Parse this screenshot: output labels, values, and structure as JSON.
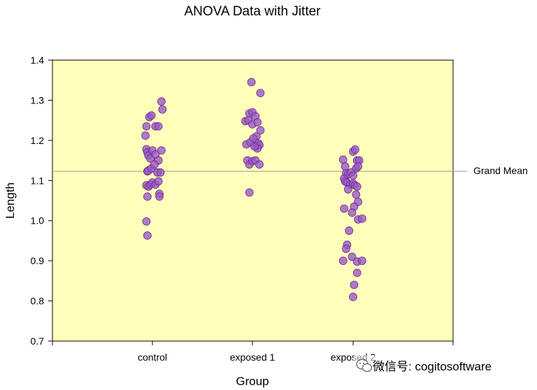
{
  "chart_data": {
    "type": "scatter",
    "title": "ANOVA Data with Jitter",
    "xlabel": "Group",
    "ylabel": "Length",
    "categories": [
      "control",
      "exposed 1",
      "exposed 2"
    ],
    "ylim": [
      0.7,
      1.4
    ],
    "yticks": [
      "0.7",
      "0.8",
      "0.9",
      "1.0",
      "1.1",
      "1.2",
      "1.3",
      "1.4"
    ],
    "grid": false,
    "plot_background": "#FFFFBB",
    "marker_color": "#9B59C6",
    "marker_edge": "#6A2C91",
    "reference_line": {
      "label": "Grand Mean",
      "value": 1.123,
      "color": "#999999"
    },
    "series": [
      {
        "category": "control",
        "points": [
          [
            -0.07,
            1.212
          ],
          [
            -0.06,
            1.235
          ],
          [
            -0.03,
            1.258
          ],
          [
            -0.01,
            1.262
          ],
          [
            0.03,
            1.235
          ],
          [
            0.06,
            1.235
          ],
          [
            0.09,
            1.297
          ],
          [
            0.1,
            1.277
          ],
          [
            -0.06,
            1.178
          ],
          [
            -0.05,
            1.17
          ],
          [
            -0.04,
            1.162
          ],
          [
            -0.02,
            1.155
          ],
          [
            0.0,
            1.175
          ],
          [
            0.03,
            1.165
          ],
          [
            0.06,
            1.15
          ],
          [
            0.09,
            1.175
          ],
          [
            -0.05,
            1.123
          ],
          [
            -0.04,
            1.125
          ],
          [
            -0.01,
            1.13
          ],
          [
            0.02,
            1.14
          ],
          [
            0.05,
            1.12
          ],
          [
            0.08,
            1.12
          ],
          [
            -0.06,
            1.088
          ],
          [
            -0.04,
            1.085
          ],
          [
            -0.02,
            1.09
          ],
          [
            0.0,
            1.095
          ],
          [
            0.03,
            1.09
          ],
          [
            0.06,
            1.098
          ],
          [
            0.07,
            1.067
          ],
          [
            0.07,
            1.06
          ],
          [
            -0.05,
            1.06
          ],
          [
            -0.06,
            0.998
          ],
          [
            -0.05,
            0.963
          ]
        ]
      },
      {
        "category": "exposed 1",
        "points": [
          [
            -0.01,
            1.345
          ],
          [
            0.08,
            1.318
          ],
          [
            -0.03,
            1.267
          ],
          [
            0.0,
            1.27
          ],
          [
            0.03,
            1.26
          ],
          [
            -0.07,
            1.248
          ],
          [
            -0.04,
            1.25
          ],
          [
            0.0,
            1.24
          ],
          [
            0.05,
            1.245
          ],
          [
            0.08,
            1.225
          ],
          [
            0.04,
            1.21
          ],
          [
            -0.06,
            1.19
          ],
          [
            -0.02,
            1.195
          ],
          [
            0.01,
            1.205
          ],
          [
            0.04,
            1.185
          ],
          [
            0.06,
            1.192
          ],
          [
            0.07,
            1.188
          ],
          [
            0.05,
            1.18
          ],
          [
            0.02,
            1.185
          ],
          [
            -0.05,
            1.15
          ],
          [
            -0.03,
            1.14
          ],
          [
            0.0,
            1.148
          ],
          [
            0.03,
            1.15
          ],
          [
            0.07,
            1.14
          ],
          [
            -0.03,
            1.07
          ]
        ]
      },
      {
        "category": "exposed 2",
        "points": [
          [
            0.0,
            1.172
          ],
          [
            0.02,
            1.177
          ],
          [
            -0.1,
            1.152
          ],
          [
            0.04,
            1.15
          ],
          [
            0.06,
            1.15
          ],
          [
            -0.08,
            1.135
          ],
          [
            0.03,
            1.13
          ],
          [
            0.05,
            1.135
          ],
          [
            -0.07,
            1.118
          ],
          [
            -0.05,
            1.115
          ],
          [
            -0.02,
            1.12
          ],
          [
            0.0,
            1.112
          ],
          [
            -0.09,
            1.105
          ],
          [
            -0.08,
            1.098
          ],
          [
            -0.06,
            1.095
          ],
          [
            -0.03,
            1.09
          ],
          [
            0.0,
            1.092
          ],
          [
            0.02,
            1.088
          ],
          [
            0.04,
            1.085
          ],
          [
            -0.05,
            1.078
          ],
          [
            0.03,
            1.065
          ],
          [
            0.05,
            1.047
          ],
          [
            -0.09,
            1.03
          ],
          [
            0.01,
            1.035
          ],
          [
            -0.01,
            1.02
          ],
          [
            0.05,
            1.003
          ],
          [
            0.09,
            1.005
          ],
          [
            -0.04,
            0.975
          ],
          [
            -0.06,
            0.94
          ],
          [
            -0.07,
            0.93
          ],
          [
            -0.1,
            0.9
          ],
          [
            -0.01,
            0.91
          ],
          [
            0.04,
            0.898
          ],
          [
            0.09,
            0.9
          ],
          [
            0.04,
            0.87
          ],
          [
            0.01,
            0.84
          ],
          [
            0.0,
            0.81
          ]
        ]
      }
    ]
  },
  "watermark": "微信号: cogitosoftware"
}
